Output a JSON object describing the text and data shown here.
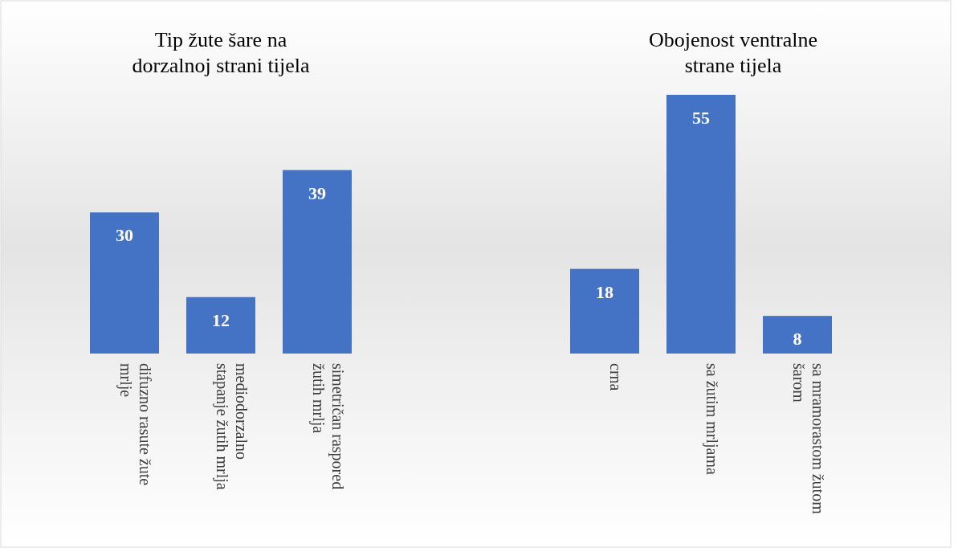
{
  "chart_data": [
    {
      "type": "bar",
      "title": "Tip žute šare na dorzalnoj strani tijela",
      "categories": [
        "difuzno rasute žute mrlje",
        "mediodorzalno stapanje žutih mrlja",
        "simetričan raspored žutih mrlja"
      ],
      "values": [
        30,
        12,
        39
      ],
      "color": "#4472c4",
      "data_labels": true
    },
    {
      "type": "bar",
      "title": "Obojenost ventralne strane tijela",
      "categories": [
        "crna",
        "sa žutim mrljama",
        "sa mramorastom žutom šarom"
      ],
      "values": [
        18,
        55,
        8
      ],
      "color": "#4472c4",
      "data_labels": true
    }
  ]
}
